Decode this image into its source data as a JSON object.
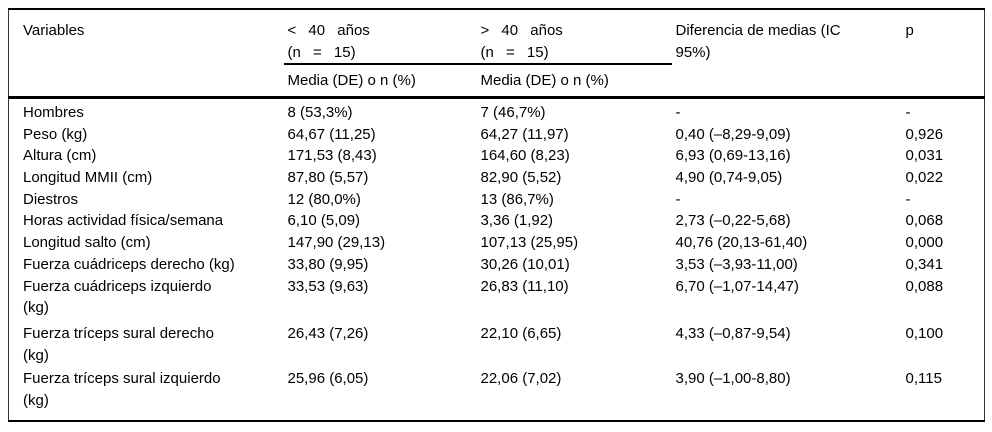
{
  "colors": {
    "background": "#ffffff",
    "text": "#000000",
    "rule": "#000000"
  },
  "table": {
    "header": {
      "variables": "Variables",
      "group1_line1": "< 40 años",
      "group1_line2": "(n = 15)",
      "group2_line1": "> 40 años",
      "group2_line2": "(n = 15)",
      "subheader1": "Media (DE) o n (%)",
      "subheader2": "Media (DE) o n (%)",
      "diff": "Diferencia de medias (IC 95%)",
      "p": "p"
    },
    "rows": [
      {
        "variable": "Hombres",
        "g1": "8 (53,3%)",
        "g2": "7 (46,7%)",
        "diff": "-",
        "p": "-"
      },
      {
        "variable": "Peso (kg)",
        "g1": "64,67 (11,25)",
        "g2": "64,27 (11,97)",
        "diff": "0,40 (–8,29-9,09)",
        "p": "0,926"
      },
      {
        "variable": "Altura (cm)",
        "g1": "171,53 (8,43)",
        "g2": "164,60 (8,23)",
        "diff": "6,93 (0,69-13,16)",
        "p": "0,031"
      },
      {
        "variable": "Longitud MMII (cm)",
        "g1": "87,80 (5,57)",
        "g2": "82,90 (5,52)",
        "diff": "4,90 (0,74-9,05)",
        "p": "0,022"
      },
      {
        "variable": "Diestros",
        "g1": "12 (80,0%)",
        "g2": "13 (86,7%)",
        "diff": "-",
        "p": "-"
      },
      {
        "variable": "Horas actividad física/semana",
        "g1": "6,10 (5,09)",
        "g2": "3,36 (1,92)",
        "diff": "2,73 (–0,22-5,68)",
        "p": "0,068"
      },
      {
        "variable": "Longitud salto (cm)",
        "g1": "147,90 (29,13)",
        "g2": "107,13 (25,95)",
        "diff": "40,76 (20,13-61,40)",
        "p": "0,000"
      },
      {
        "variable": "Fuerza cuádriceps derecho (kg)",
        "g1": "33,80 (9,95)",
        "g2": "30,26 (10,01)",
        "diff": "3,53 (–3,93-11,00)",
        "p": "0,341"
      },
      {
        "variable": "Fuerza cuádriceps izquierdo (kg)",
        "g1": "33,53 (9,63)",
        "g2": "26,83 (11,10)",
        "diff": "6,70 (–1,07-14,47)",
        "p": "0,088"
      },
      {
        "variable": "Fuerza tríceps sural derecho (kg)",
        "g1": "26,43 (7,26)",
        "g2": "22,10 (6,65)",
        "diff": "4,33 (–0,87-9,54)",
        "p": "0,100"
      },
      {
        "variable": "Fuerza tríceps sural izquierdo (kg)",
        "g1": "25,96 (6,05)",
        "g2": "22,06 (7,02)",
        "diff": "3,90 (–1,00-8,80)",
        "p": "0,115"
      }
    ]
  }
}
